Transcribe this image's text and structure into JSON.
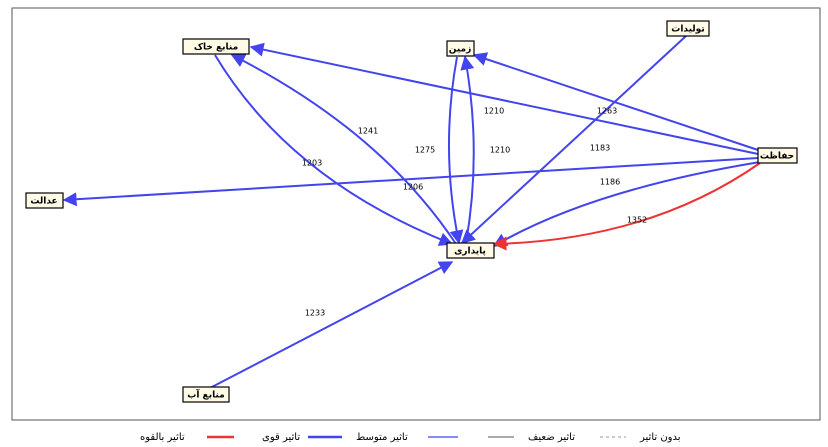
{
  "nodes": [
    {
      "label": "منابع خاک"
    },
    {
      "label": "زمین"
    },
    {
      "label": "تولیدات"
    },
    {
      "label": "حفاظت"
    },
    {
      "label": "عدالت"
    },
    {
      "label": "پایداری"
    },
    {
      "label": "منابع آب"
    }
  ],
  "edge_labels": [
    "1241",
    "1203",
    "1275",
    "1206",
    "1210",
    "1210",
    "1263",
    "1183",
    "1186",
    "1352",
    "1233"
  ],
  "legend": [
    "تاثیر بالقوه",
    "تاثیر قوی",
    "تاثیر متوسط",
    "تاثیر ضعیف",
    "بدون تاثیر"
  ]
}
